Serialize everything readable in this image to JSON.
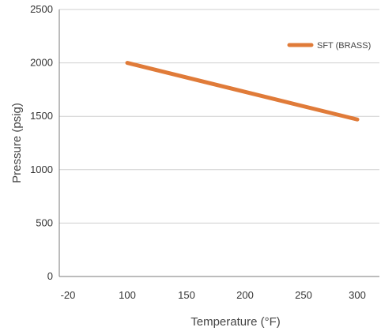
{
  "chart_data": {
    "type": "line",
    "title": "",
    "xlabel": "Temperature (°F)",
    "ylabel": "Pressure (psig)",
    "x_tick_labels": [
      "-20",
      "100",
      "150",
      "200",
      "250",
      "300"
    ],
    "y_ticks": [
      0,
      500,
      1000,
      1500,
      2000,
      2500
    ],
    "ylim": [
      0,
      2500
    ],
    "grid": true,
    "legend_position": "top-right",
    "series": [
      {
        "name": "SFT (BRASS)",
        "color": "#e07b39",
        "points": [
          {
            "x": 100,
            "y": 2000
          },
          {
            "x": 300,
            "y": 1470
          }
        ]
      }
    ]
  }
}
